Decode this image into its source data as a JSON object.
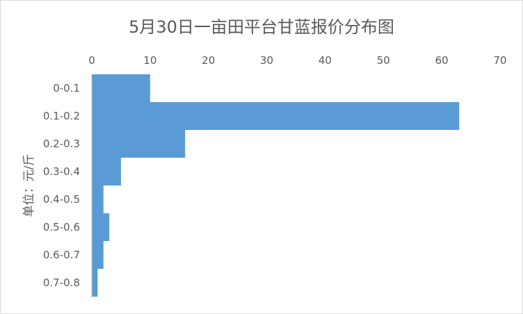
{
  "chart_data": {
    "type": "bar",
    "orientation": "horizontal",
    "title": "5月30日一亩田平台甘蓝报价分布图",
    "ylabel": "单位：元/斤",
    "xlabel": "",
    "categories": [
      "0-0.1",
      "0.1-0.2",
      "0.2-0.3",
      "0.3-0.4",
      "0.4-0.5",
      "0.5-0.6",
      "0.6-0.7",
      "0.7-0.8"
    ],
    "values": [
      10,
      63,
      16,
      5,
      2,
      3,
      2,
      1
    ],
    "xlim": [
      0,
      70
    ],
    "xticks": [
      0,
      10,
      20,
      30,
      40,
      50,
      60,
      70
    ],
    "x_axis_position": "top",
    "grid": false,
    "legend": "none",
    "bar_color": "#5B9BD5"
  }
}
